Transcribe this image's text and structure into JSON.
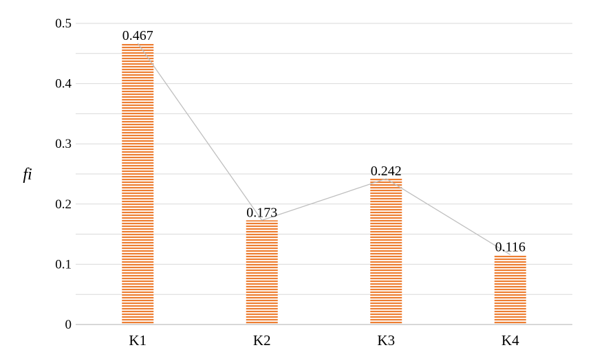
{
  "chart_data": {
    "type": "bar",
    "categories": [
      "K1",
      "K2",
      "K3",
      "K4"
    ],
    "values": [
      0.467,
      0.173,
      0.242,
      0.116
    ],
    "data_labels": [
      "0.467",
      "0.173",
      "0.242",
      "0.116"
    ],
    "ylabel": "fi",
    "ylim": [
      0,
      0.5
    ],
    "y_ticks": [
      0,
      0.1,
      0.2,
      0.3,
      0.4,
      0.5
    ],
    "y_tick_labels": [
      "0",
      "0.1",
      "0.2",
      "0.3",
      "0.4",
      "0.5"
    ],
    "connecting_line": true,
    "grid": true,
    "grid_minor_step": 0.05,
    "legend": "none",
    "colors": {
      "bar_stripe": "#ED7D31",
      "bar_background": "#ffffff",
      "grid": "#d9d9d9",
      "axis": "#bfbfbf",
      "connect_line": "#bfbfbf"
    }
  }
}
